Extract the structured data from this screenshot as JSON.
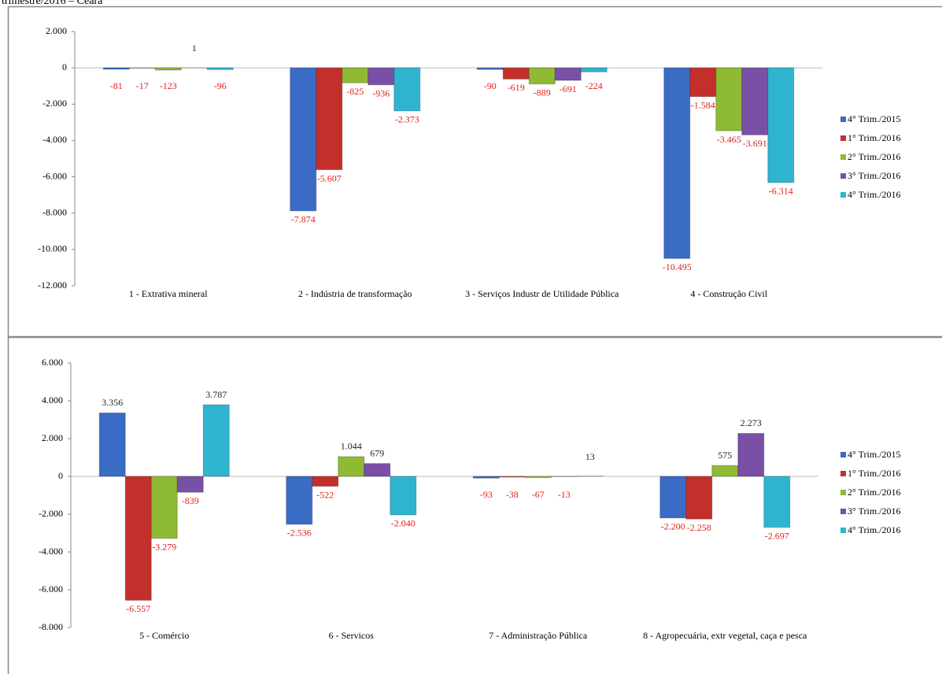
{
  "caption": "trimestre/2016 – Ceará",
  "chart_data": [
    {
      "type": "bar",
      "ylim": [
        -12000,
        2000
      ],
      "yticks": [
        {
          "value": -12000,
          "label": "-12.000"
        },
        {
          "value": -10000,
          "label": "-10.000"
        },
        {
          "value": -8000,
          "label": "-8.000"
        },
        {
          "value": -6000,
          "label": "-6.000"
        },
        {
          "value": -4000,
          "label": "-4.000"
        },
        {
          "value": -2000,
          "label": "-2.000"
        },
        0,
        {
          "value": 2000,
          "label": "2.000"
        }
      ],
      "categories": [
        "1 - Extrativa mineral",
        "2 - Indústria de transformação",
        "3 - Serviços Industr de Utilidade Pública",
        "4 - Construção Civil"
      ],
      "series": [
        {
          "name": "4° Trim./2015",
          "color": "#3a6cc6",
          "values": [
            -81,
            -7874,
            -90,
            -10495
          ],
          "value_labels": [
            "-81",
            "-7.874",
            "-90",
            "-10.495"
          ]
        },
        {
          "name": "1° Trim./2016",
          "color": "#c3302b",
          "values": [
            -17,
            -5607,
            -619,
            -1584
          ],
          "value_labels": [
            "-17",
            "-5.607",
            "-619",
            "-1.584"
          ]
        },
        {
          "name": "2° Trim./2016",
          "color": "#8fba34",
          "values": [
            -123,
            -825,
            -889,
            -3465
          ],
          "value_labels": [
            "-123",
            "-825",
            "-889",
            "-3.465"
          ]
        },
        {
          "name": "3° Trim./2016",
          "color": "#7a50a6",
          "values": [
            1,
            -936,
            -691,
            -3691
          ],
          "value_labels": [
            "1",
            "-936",
            "-691",
            "-3.691"
          ]
        },
        {
          "name": "4° Trim./2016",
          "color": "#2fb4d0",
          "values": [
            -96,
            -2373,
            -224,
            -6314
          ],
          "value_labels": [
            "-96",
            "-2.373",
            "-224",
            "-6.314"
          ]
        }
      ]
    },
    {
      "type": "bar",
      "ylim": [
        -8000,
        6000
      ],
      "yticks": [
        {
          "value": -8000,
          "label": "-8.000"
        },
        {
          "value": -6000,
          "label": "-6.000"
        },
        {
          "value": -4000,
          "label": "-4.000"
        },
        {
          "value": -2000,
          "label": "-2.000"
        },
        0,
        {
          "value": 2000,
          "label": "2.000"
        },
        {
          "value": 4000,
          "label": "4.000"
        },
        {
          "value": 6000,
          "label": "6.000"
        }
      ],
      "categories": [
        "5 - Comércio",
        "6 - Servicos",
        "7 - Administração Pública",
        "8 - Agropecuária, extr vegetal, caça e pesca"
      ],
      "series": [
        {
          "name": "4° Trim./2015",
          "color": "#3a6cc6",
          "values": [
            3356,
            -2536,
            -93,
            -2200
          ],
          "value_labels": [
            "3.356",
            "-2.536",
            "-93",
            "-2.200"
          ]
        },
        {
          "name": "1° Trim./2016",
          "color": "#c3302b",
          "values": [
            -6557,
            -522,
            -38,
            -2258
          ],
          "value_labels": [
            "-6.557",
            "-522",
            "-38",
            "-2.258"
          ]
        },
        {
          "name": "2° Trim./2016",
          "color": "#8fba34",
          "values": [
            -3279,
            1044,
            -67,
            575
          ],
          "value_labels": [
            "-3.279",
            "1.044",
            "-67",
            "575"
          ]
        },
        {
          "name": "3° Trim./2016",
          "color": "#7a50a6",
          "values": [
            -839,
            679,
            -13,
            2273
          ],
          "value_labels": [
            "-839",
            "679",
            "-13",
            "2.273"
          ]
        },
        {
          "name": "4° Trim./2016",
          "color": "#2fb4d0",
          "values": [
            3787,
            -2040,
            13,
            -2697
          ],
          "value_labels": [
            "3.787",
            "-2.040",
            "13",
            "-2.697"
          ]
        }
      ]
    }
  ]
}
